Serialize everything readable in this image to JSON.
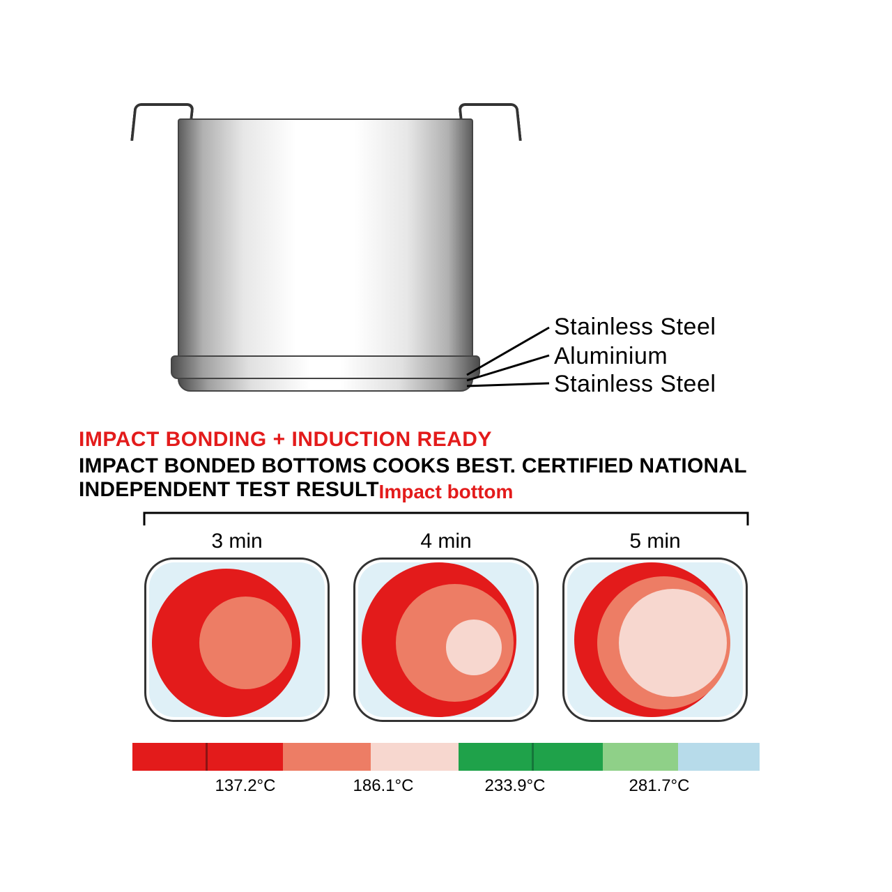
{
  "pot": {
    "layer_labels": [
      "Stainless Steel",
      "Aluminium",
      "Stainless Steel"
    ],
    "label_fontsize": 34,
    "line_color": "#000000"
  },
  "headline": {
    "red": "IMPACT BONDING + INDUCTION READY",
    "red_color": "#e31b1b",
    "black": "IMPACT BONDED BOTTOMS COOKS BEST. CERTIFIED NATIONAL INDEPENDENT TEST RESULT",
    "black_color": "#000000",
    "fontsize": 30
  },
  "heatmap": {
    "title": "Impact bottom",
    "title_color": "#e31b1b",
    "halo_color": "#dff0f7",
    "tiles": [
      {
        "label": "3 min",
        "circles": [
          {
            "cx_pct": 44,
            "cy_pct": 52,
            "r_pct": 48,
            "color": "#e31b1b"
          },
          {
            "cx_pct": 55,
            "cy_pct": 52,
            "r_pct": 30,
            "color": "#ed7d65"
          }
        ]
      },
      {
        "label": "4 min",
        "circles": [
          {
            "cx_pct": 46,
            "cy_pct": 50,
            "r_pct": 50,
            "color": "#e31b1b"
          },
          {
            "cx_pct": 55,
            "cy_pct": 52,
            "r_pct": 38,
            "color": "#ed7d65"
          },
          {
            "cx_pct": 66,
            "cy_pct": 55,
            "r_pct": 18,
            "color": "#f7d7cf"
          }
        ]
      },
      {
        "label": "5 min",
        "circles": [
          {
            "cx_pct": 48,
            "cy_pct": 50,
            "r_pct": 50,
            "color": "#e31b1b"
          },
          {
            "cx_pct": 55,
            "cy_pct": 52,
            "r_pct": 43,
            "color": "#ed7d65"
          },
          {
            "cx_pct": 60,
            "cy_pct": 52,
            "r_pct": 35,
            "color": "#f7d7cf"
          }
        ]
      }
    ]
  },
  "legend": {
    "segments": [
      {
        "color": "#e31b1b",
        "w_pct": 12,
        "border_right": "#8c1414"
      },
      {
        "color": "#e31b1b",
        "w_pct": 12
      },
      {
        "color": "#ed7d65",
        "w_pct": 14
      },
      {
        "color": "#f7d7cf",
        "w_pct": 14
      },
      {
        "color": "#1fa24a",
        "w_pct": 12,
        "border_right": "#15763a"
      },
      {
        "color": "#1fa24a",
        "w_pct": 11
      },
      {
        "color": "#8fd088",
        "w_pct": 12
      },
      {
        "color": "#b7dbea",
        "w_pct": 13
      }
    ],
    "labels": [
      {
        "text": "137.2°C",
        "pos_pct": 18
      },
      {
        "text": "186.1°C",
        "pos_pct": 40
      },
      {
        "text": "233.9°C",
        "pos_pct": 61
      },
      {
        "text": "281.7°C",
        "pos_pct": 84
      }
    ]
  }
}
